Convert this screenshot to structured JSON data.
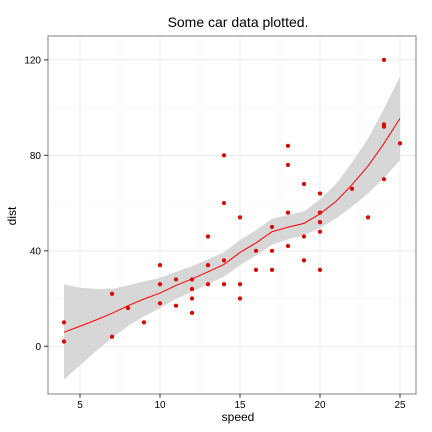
{
  "chart_data": {
    "type": "scatter",
    "title": "Some car data plotted.",
    "xlabel": "speed",
    "ylabel": "dist",
    "xlim": [
      3.0,
      26.0
    ],
    "ylim": [
      -20,
      130
    ],
    "x_ticks": [
      5,
      10,
      15,
      20,
      25
    ],
    "y_ticks": [
      0,
      40,
      80,
      120
    ],
    "grid": true,
    "legend": "none",
    "colors": {
      "points": "#dd0000",
      "smooth_line": "#ff0000",
      "ribbon": "#d3d3d3",
      "panel_border": "#7f7f7f",
      "grid_major": "#ebebeb",
      "grid_minor": "#f5f5f5"
    },
    "points": [
      {
        "x": 4,
        "y": 2
      },
      {
        "x": 4,
        "y": 10
      },
      {
        "x": 7,
        "y": 4
      },
      {
        "x": 7,
        "y": 22
      },
      {
        "x": 8,
        "y": 16
      },
      {
        "x": 9,
        "y": 10
      },
      {
        "x": 10,
        "y": 18
      },
      {
        "x": 10,
        "y": 26
      },
      {
        "x": 10,
        "y": 34
      },
      {
        "x": 11,
        "y": 17
      },
      {
        "x": 11,
        "y": 28
      },
      {
        "x": 12,
        "y": 14
      },
      {
        "x": 12,
        "y": 20
      },
      {
        "x": 12,
        "y": 24
      },
      {
        "x": 12,
        "y": 28
      },
      {
        "x": 13,
        "y": 26
      },
      {
        "x": 13,
        "y": 34
      },
      {
        "x": 13,
        "y": 46
      },
      {
        "x": 14,
        "y": 26
      },
      {
        "x": 14,
        "y": 36
      },
      {
        "x": 14,
        "y": 60
      },
      {
        "x": 14,
        "y": 80
      },
      {
        "x": 15,
        "y": 20
      },
      {
        "x": 15,
        "y": 26
      },
      {
        "x": 15,
        "y": 54
      },
      {
        "x": 16,
        "y": 32
      },
      {
        "x": 16,
        "y": 40
      },
      {
        "x": 17,
        "y": 32
      },
      {
        "x": 17,
        "y": 40
      },
      {
        "x": 17,
        "y": 50
      },
      {
        "x": 18,
        "y": 42
      },
      {
        "x": 18,
        "y": 56
      },
      {
        "x": 18,
        "y": 76
      },
      {
        "x": 18,
        "y": 84
      },
      {
        "x": 19,
        "y": 36
      },
      {
        "x": 19,
        "y": 46
      },
      {
        "x": 19,
        "y": 68
      },
      {
        "x": 20,
        "y": 32
      },
      {
        "x": 20,
        "y": 48
      },
      {
        "x": 20,
        "y": 52
      },
      {
        "x": 20,
        "y": 56
      },
      {
        "x": 20,
        "y": 64
      },
      {
        "x": 22,
        "y": 66
      },
      {
        "x": 23,
        "y": 54
      },
      {
        "x": 24,
        "y": 70
      },
      {
        "x": 24,
        "y": 92
      },
      {
        "x": 24,
        "y": 93
      },
      {
        "x": 24,
        "y": 120
      },
      {
        "x": 25,
        "y": 85
      }
    ],
    "smooth": {
      "method": "loess",
      "x": [
        4,
        5,
        6,
        7,
        8,
        9,
        10,
        11,
        12,
        13,
        14,
        15,
        16,
        17,
        18,
        19,
        20,
        21,
        22,
        23,
        24,
        25
      ],
      "y": [
        5.9,
        8.4,
        11,
        13.8,
        17,
        19.8,
        22.3,
        25.5,
        28.2,
        31.2,
        34.3,
        39.3,
        43.3,
        48,
        49.9,
        51.5,
        55.5,
        60.7,
        67.7,
        75.5,
        85,
        95.5
      ],
      "lower": [
        -14,
        -8,
        -2,
        3.5,
        8.5,
        12.5,
        16,
        19.8,
        22.8,
        26,
        29.2,
        34,
        38,
        42.5,
        44.8,
        46.5,
        49.5,
        53.5,
        58.5,
        64,
        70.5,
        78
      ],
      "upper": [
        26,
        24.5,
        24,
        24,
        25.5,
        27.2,
        28.6,
        31.2,
        33.6,
        36.4,
        39.4,
        44.6,
        48.6,
        53.5,
        55,
        56.5,
        61.5,
        68,
        77,
        87,
        99.5,
        113
      ]
    }
  }
}
